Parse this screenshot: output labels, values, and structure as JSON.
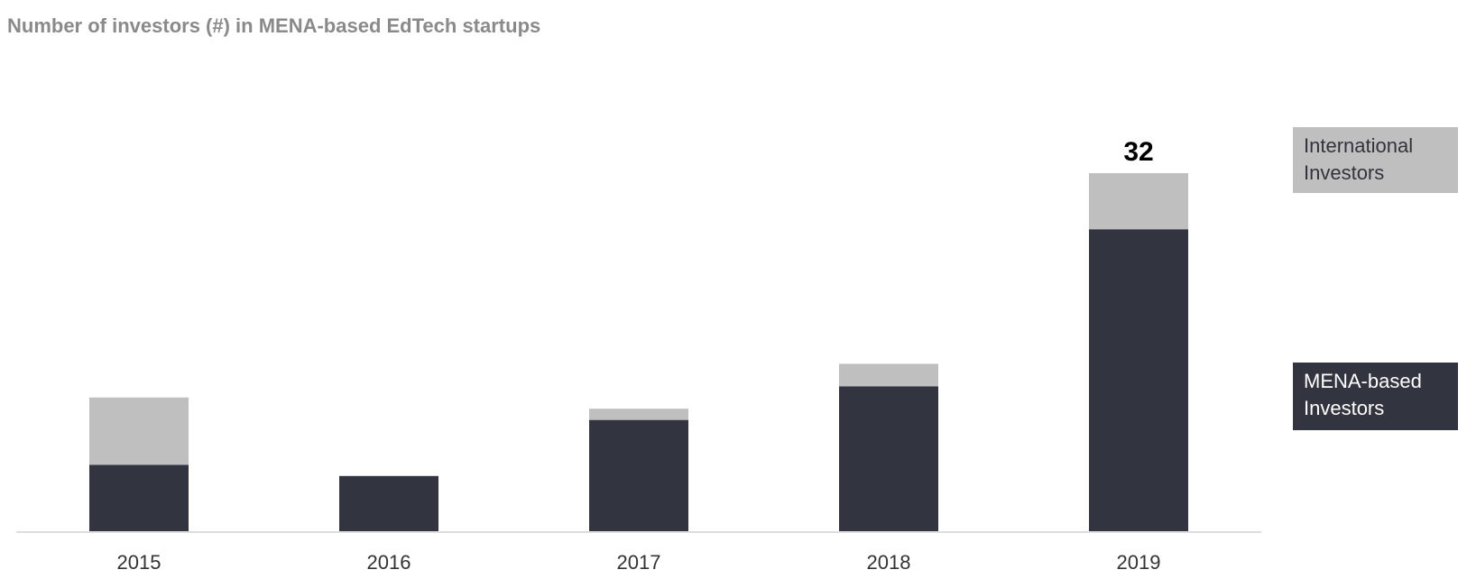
{
  "chart_data": {
    "type": "bar",
    "stacked": true,
    "title": "Number of investors (#) in MENA-based EdTech startups",
    "categories": [
      "2015",
      "2016",
      "2017",
      "2018",
      "2019"
    ],
    "series": [
      {
        "name": "MENA-based Investors",
        "values": [
          6,
          5,
          10,
          13,
          27
        ],
        "color": "#32343f"
      },
      {
        "name": "International Investors",
        "values": [
          6,
          0,
          1,
          2,
          5
        ],
        "color": "#bfbfbf"
      }
    ],
    "data_labels": [
      {
        "category": "2019",
        "text": "32"
      }
    ],
    "ylim": [
      0,
      32
    ],
    "grid": false,
    "legend_position": "right"
  }
}
